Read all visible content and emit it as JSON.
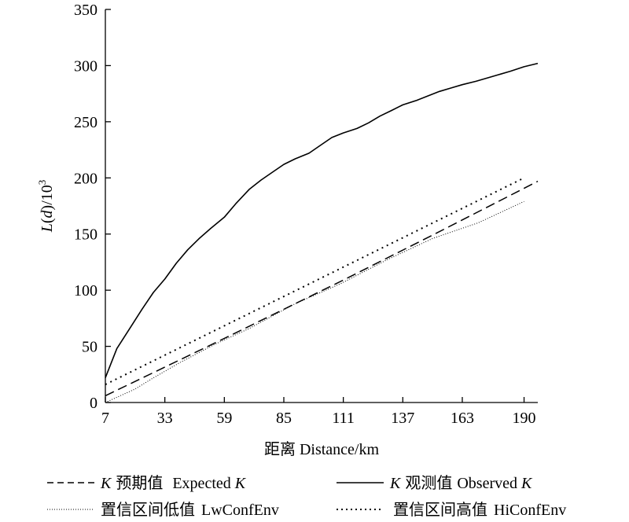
{
  "chart_data": {
    "type": "line",
    "xlabel": "距离 Distance/km",
    "ylabel": {
      "var": "L",
      "paren_open": "(",
      "arg": "d",
      "paren_close": ")/10",
      "exp": "3"
    },
    "x_ticks": [
      7,
      33,
      59,
      85,
      111,
      137,
      163,
      190
    ],
    "y_ticks": [
      0,
      50,
      100,
      150,
      200,
      250,
      300,
      350
    ],
    "xlim": [
      7,
      196
    ],
    "ylim": [
      0,
      350
    ],
    "grid": false,
    "legend_position": "bottom",
    "series": [
      {
        "id": "expected",
        "legend_k": "K",
        "legend_cn": "预期值",
        "legend_en": "Expected",
        "legend_k2": "K",
        "style": "dashed",
        "x": [
          7,
          60,
          111,
          150,
          196
        ],
        "y": [
          6,
          58,
          109,
          149,
          197
        ]
      },
      {
        "id": "observed",
        "legend_k": "K",
        "legend_cn": "观测值",
        "legend_en": "Observed",
        "legend_k2": "K",
        "style": "solid",
        "x": [
          7,
          12,
          18,
          23,
          28,
          33,
          38,
          43,
          48,
          53,
          59,
          64,
          70,
          75,
          80,
          85,
          90,
          96,
          101,
          106,
          111,
          117,
          122,
          127,
          132,
          137,
          143,
          148,
          153,
          158,
          163,
          169,
          174,
          179,
          184,
          190,
          196
        ],
        "y": [
          22,
          48,
          67,
          83,
          98,
          110,
          124,
          136,
          146,
          155,
          165,
          177,
          190,
          198,
          205,
          212,
          217,
          222,
          229,
          236,
          240,
          244,
          249,
          255,
          260,
          265,
          269,
          273,
          277,
          280,
          283,
          286,
          289,
          292,
          295,
          299,
          302
        ]
      },
      {
        "id": "lwconfenv",
        "legend_cn": "置信区间低值",
        "legend_en": "LwConfEnv",
        "style": "dotted-fine",
        "x": [
          7,
          20,
          28,
          40,
          55,
          70,
          90,
          110,
          130,
          150,
          170,
          190
        ],
        "y": [
          0,
          12,
          22,
          36,
          52,
          66,
          88,
          106,
          127,
          146,
          160,
          179
        ]
      },
      {
        "id": "hiconfenv",
        "legend_cn": "置信区间高值",
        "legend_en": "HiConfEnv",
        "style": "dotted",
        "x": [
          7,
          190
        ],
        "y": [
          16,
          200
        ]
      }
    ]
  }
}
